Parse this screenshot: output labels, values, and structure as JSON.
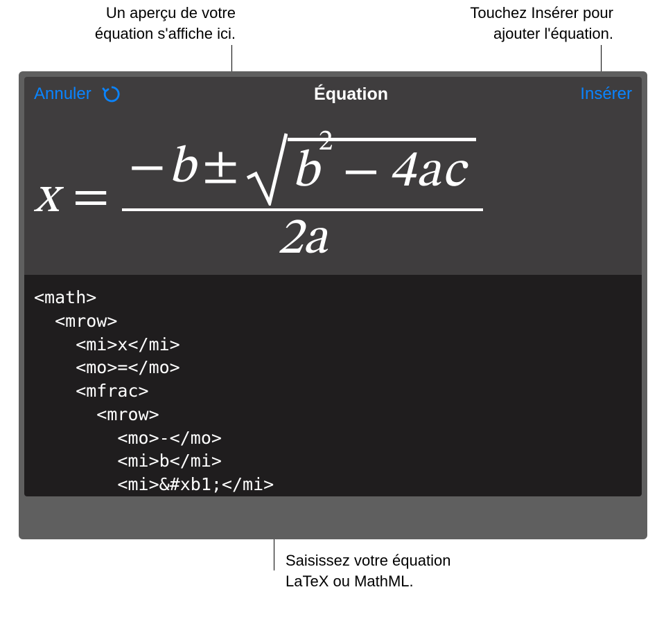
{
  "callouts": {
    "preview": "Un aperçu de votre\néquation s'affiche ici.",
    "insert": "Touchez Insérer pour\najouter l'équation.",
    "input": "Saisissez votre équation\nLaTeX ou MathML."
  },
  "header": {
    "cancel": "Annuler",
    "title": "Équation",
    "insert": "Insérer"
  },
  "equation_preview": {
    "x": "x",
    "equals": "=",
    "numerator": {
      "minus": "−",
      "b": "b",
      "pm": "±",
      "radicand": {
        "b": "b",
        "sup2": "2",
        "minus": "−",
        "four_a_c": "4ac"
      }
    },
    "denominator": "2a"
  },
  "code": "<math>\n  <mrow>\n    <mi>x</mi>\n    <mo>=</mo>\n    <mfrac>\n      <mrow>\n        <mo>-</mo>\n        <mi>b</mi>\n        <mi>&#xb1;</mi>",
  "colors": {
    "panel_bg": "#5f5f5f",
    "header_bg": "#3f3d3e",
    "preview_bg": "#3f3d3e",
    "code_bg": "#1f1d1e",
    "text_white": "#ffffff",
    "link_blue": "#0a84ff",
    "page_bg": "#ffffff"
  }
}
